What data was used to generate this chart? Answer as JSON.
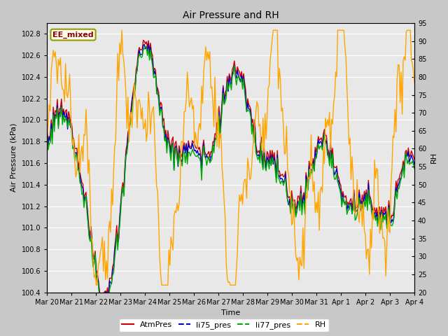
{
  "title": "Air Pressure and RH",
  "xlabel": "Time",
  "ylabel_left": "Air Pressure (kPa)",
  "ylabel_right": "RH",
  "ylim_left": [
    100.4,
    102.9
  ],
  "ylim_right": [
    20,
    95
  ],
  "yticks_left": [
    100.4,
    100.6,
    100.8,
    101.0,
    101.2,
    101.4,
    101.6,
    101.8,
    102.0,
    102.2,
    102.4,
    102.6,
    102.8
  ],
  "yticks_right": [
    20,
    25,
    30,
    35,
    40,
    45,
    50,
    55,
    60,
    65,
    70,
    75,
    80,
    85,
    90,
    95
  ],
  "xtick_labels": [
    "Mar 20",
    "Mar 21",
    "Mar 22",
    "Mar 23",
    "Mar 24",
    "Mar 25",
    "Mar 26",
    "Mar 27",
    "Mar 28",
    "Mar 29",
    "Mar 30",
    "Mar 31",
    "Apr 1",
    "Apr 2",
    "Apr 3",
    "Apr 4"
  ],
  "annotation_text": "EE_mixed",
  "annotation_color": "#8B0000",
  "annotation_bg": "#FFFFF0",
  "annotation_border": "#999900",
  "color_atm": "#cc0000",
  "color_li75": "#0000cc",
  "color_li77": "#00aa00",
  "color_rh": "#FFA500",
  "fig_bg": "#c8c8c8",
  "plot_bg": "#e8e8e8",
  "legend_labels": [
    "AtmPres",
    "li75_pres",
    "li77_pres",
    "RH"
  ],
  "line_width": 1.0,
  "title_fontsize": 10,
  "label_fontsize": 8,
  "tick_fontsize": 7,
  "legend_fontsize": 8
}
